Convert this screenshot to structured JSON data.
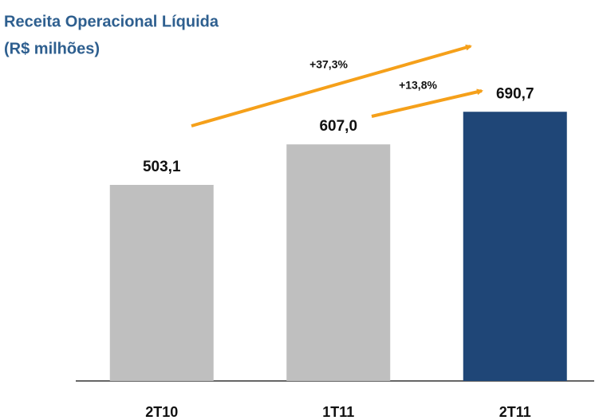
{
  "chart_data": {
    "type": "bar",
    "title": "Receita Operacional  Líquida",
    "subtitle": "(R$ milhões)",
    "categories": [
      "2T10",
      "1T11",
      "2T11"
    ],
    "values": [
      503.1,
      607.0,
      690.7
    ],
    "value_labels": [
      "503,1",
      "607,0",
      "690,7"
    ],
    "colors": [
      "#bfbfbf",
      "#bfbfbf",
      "#1f4677"
    ],
    "annotations": [
      "+37,3%",
      "+13,8%"
    ]
  }
}
